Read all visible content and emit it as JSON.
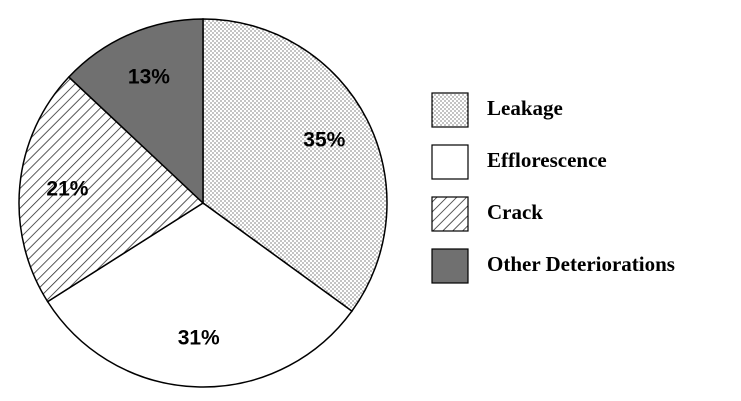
{
  "chart_data": {
    "type": "pie",
    "categories": [
      "Leakage",
      "Efflorescence",
      "Crack",
      "Other Deteriorations"
    ],
    "values": [
      35,
      31,
      21,
      13
    ],
    "value_labels": [
      "35%",
      "31%",
      "21%",
      "13%"
    ],
    "colors": [
      "#ffffff",
      "#ffffff",
      "#ffffff",
      "#707070"
    ],
    "patterns": [
      "dots",
      "solid",
      "hatch",
      "solid"
    ],
    "start_angle": "top",
    "direction": "clockwise",
    "legend": "right"
  }
}
